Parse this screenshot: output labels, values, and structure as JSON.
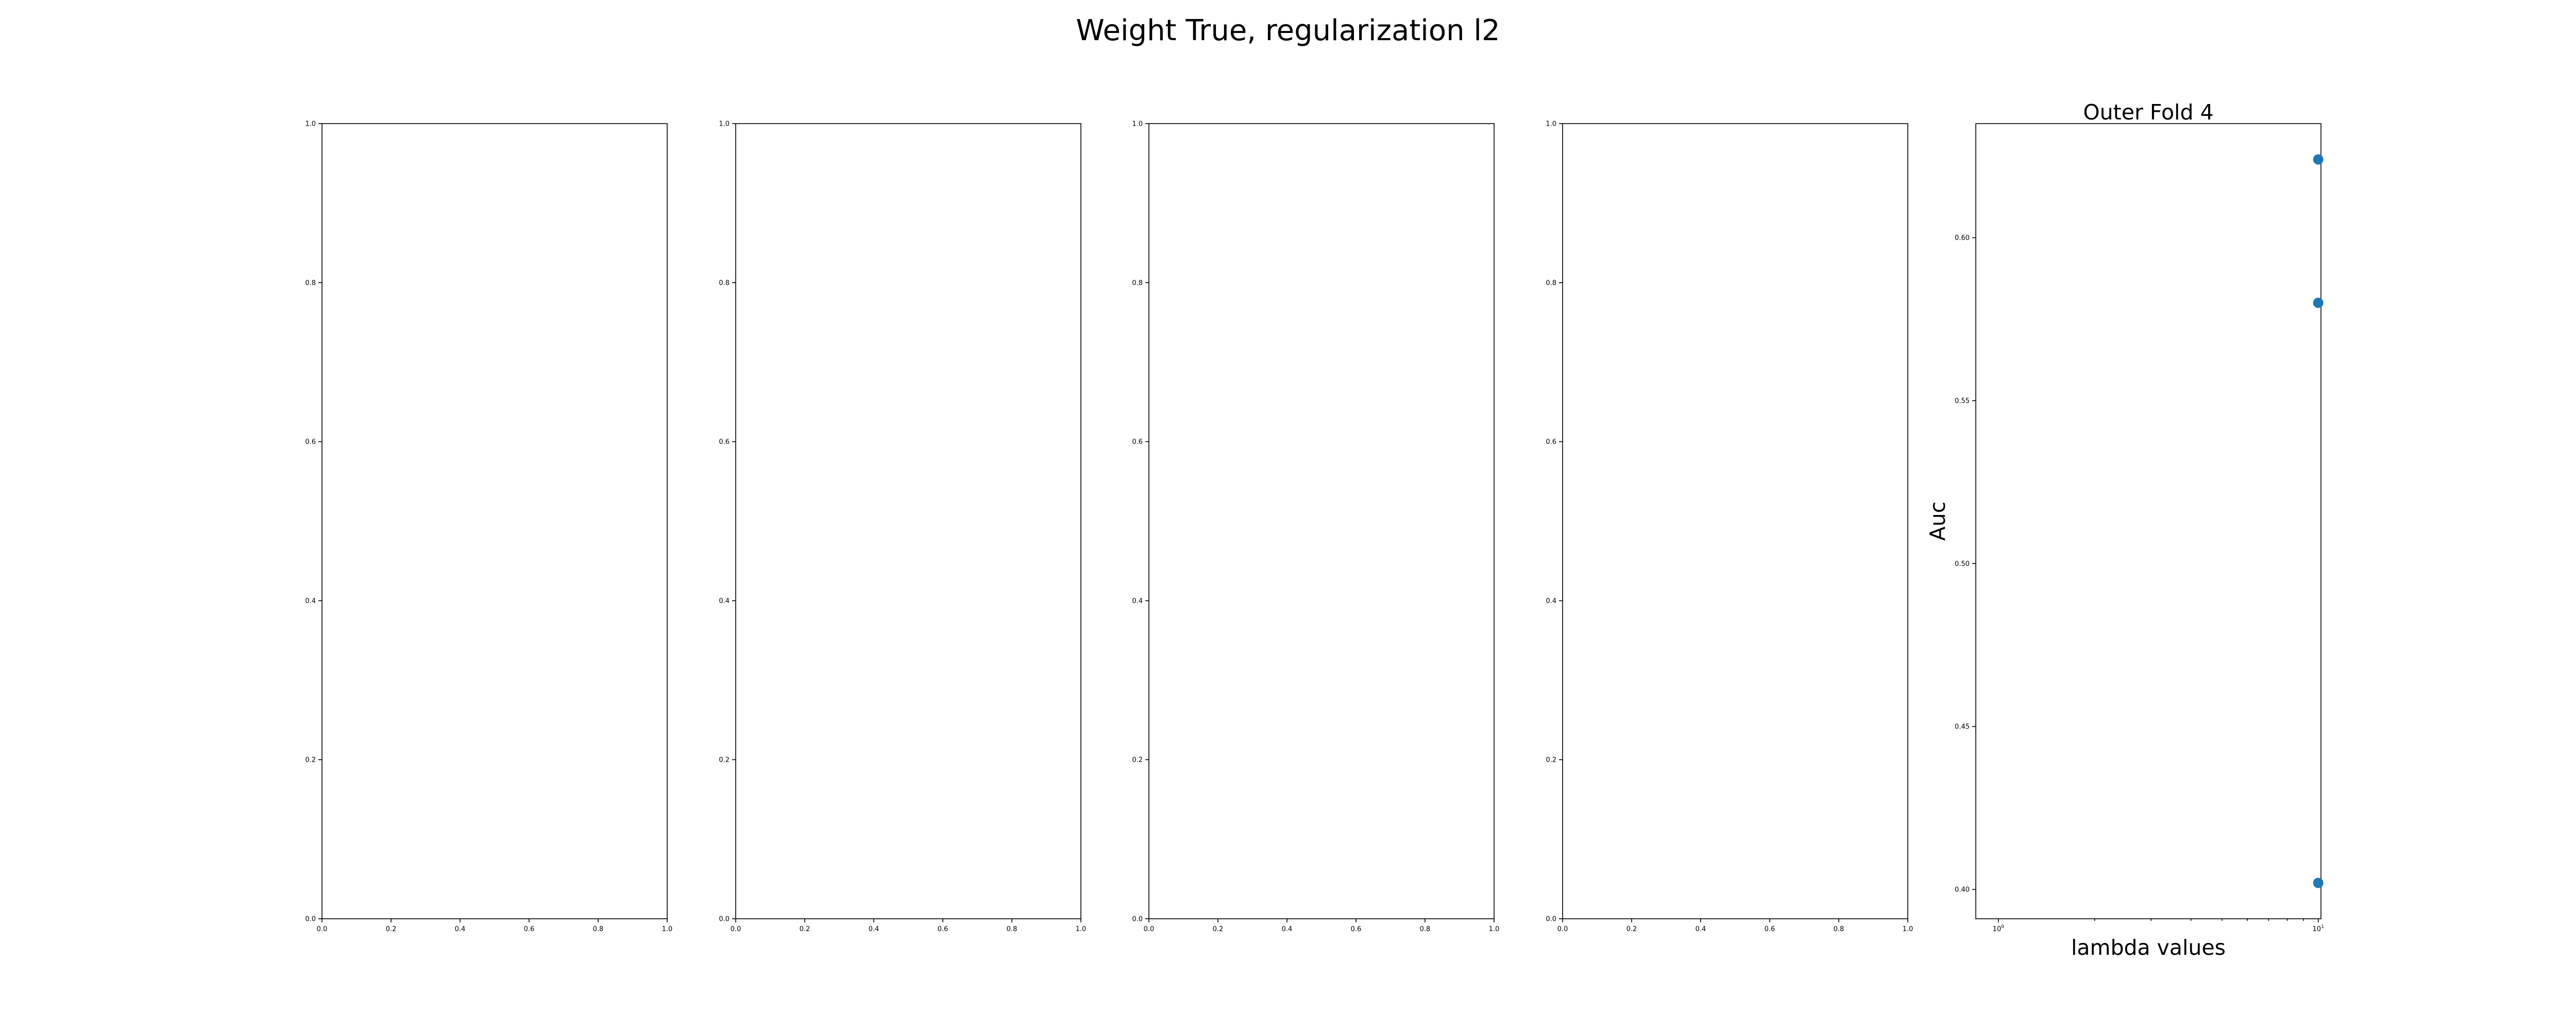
{
  "figure": {
    "suptitle": "Weight True, regularization l2"
  },
  "chart_data": [
    {
      "type": "scatter",
      "title": "",
      "xlabel": "",
      "ylabel": "",
      "xlim": [
        0,
        1
      ],
      "ylim": [
        0,
        1
      ],
      "x_ticks": [
        "0.0",
        "0.2",
        "0.4",
        "0.6",
        "0.8",
        "1.0"
      ],
      "y_ticks": [
        "0.0",
        "0.2",
        "0.4",
        "0.6",
        "0.8",
        "1.0"
      ],
      "points": []
    },
    {
      "type": "scatter",
      "title": "",
      "xlabel": "",
      "ylabel": "",
      "xlim": [
        0,
        1
      ],
      "ylim": [
        0,
        1
      ],
      "x_ticks": [
        "0.0",
        "0.2",
        "0.4",
        "0.6",
        "0.8",
        "1.0"
      ],
      "y_ticks": [
        "0.0",
        "0.2",
        "0.4",
        "0.6",
        "0.8",
        "1.0"
      ],
      "points": []
    },
    {
      "type": "scatter",
      "title": "",
      "xlabel": "",
      "ylabel": "",
      "xlim": [
        0,
        1
      ],
      "ylim": [
        0,
        1
      ],
      "x_ticks": [
        "0.0",
        "0.2",
        "0.4",
        "0.6",
        "0.8",
        "1.0"
      ],
      "y_ticks": [
        "0.0",
        "0.2",
        "0.4",
        "0.6",
        "0.8",
        "1.0"
      ],
      "points": []
    },
    {
      "type": "scatter",
      "title": "",
      "xlabel": "",
      "ylabel": "",
      "xlim": [
        0,
        1
      ],
      "ylim": [
        0,
        1
      ],
      "x_ticks": [
        "0.0",
        "0.2",
        "0.4",
        "0.6",
        "0.8",
        "1.0"
      ],
      "y_ticks": [
        "0.0",
        "0.2",
        "0.4",
        "0.6",
        "0.8",
        "1.0"
      ],
      "points": []
    },
    {
      "type": "scatter",
      "title": "Outer Fold 4",
      "xlabel": "lambda values",
      "ylabel": "Auc",
      "xscale": "log",
      "xlim": [
        0.85,
        10.2
      ],
      "ylim": [
        0.391,
        0.635
      ],
      "x_ticks": [
        {
          "value": 1,
          "base": "10",
          "exp": "0"
        },
        {
          "value": 10,
          "base": "10",
          "exp": "1"
        }
      ],
      "y_ticks": [
        {
          "value": 0.4,
          "label": "0.40"
        },
        {
          "value": 0.45,
          "label": "0.45"
        },
        {
          "value": 0.5,
          "label": "0.50"
        },
        {
          "value": 0.55,
          "label": "0.55"
        },
        {
          "value": 0.6,
          "label": "0.60"
        }
      ],
      "marker_color": "#1f77b4",
      "points": [
        {
          "x": 10,
          "y": 0.624
        },
        {
          "x": 10,
          "y": 0.58
        },
        {
          "x": 10,
          "y": 0.402
        }
      ]
    }
  ]
}
